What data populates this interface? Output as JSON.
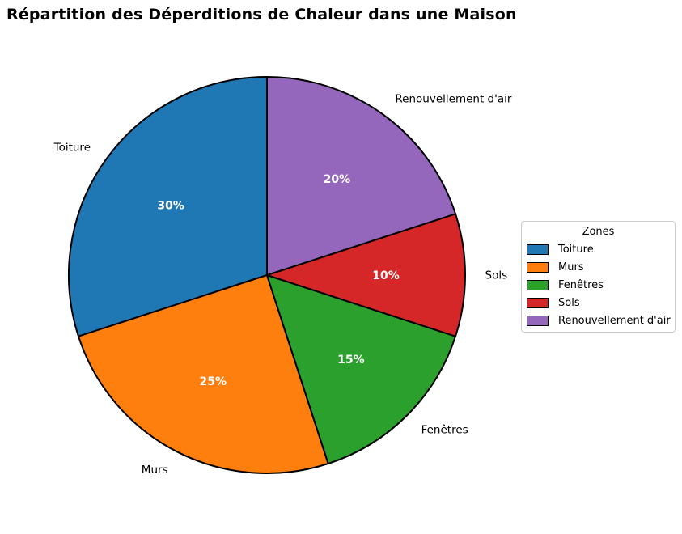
{
  "title": "Répartition des Déperditions de Chaleur dans une Maison",
  "chart_data": {
    "type": "pie",
    "title": "Répartition des Déperditions de Chaleur dans une Maison",
    "categories": [
      "Toiture",
      "Murs",
      "Fenêtres",
      "Sols",
      "Renouvellement d'air"
    ],
    "values": [
      30,
      25,
      15,
      10,
      20
    ],
    "percent_labels": [
      "30%",
      "25%",
      "15%",
      "10%",
      "20%"
    ],
    "colors": [
      "#1f77b4",
      "#ff7f0e",
      "#2ca02c",
      "#d62728",
      "#9467bd"
    ],
    "start_angle_deg": 90,
    "direction": "counterclockwise",
    "edge_color": "#000000",
    "pct_label_color": "#ffffff",
    "category_label_color": "#000000",
    "legend": {
      "title": "Zones",
      "entries": [
        "Toiture",
        "Murs",
        "Fenêtres",
        "Sols",
        "Renouvellement d'air"
      ],
      "position": "center right"
    }
  }
}
